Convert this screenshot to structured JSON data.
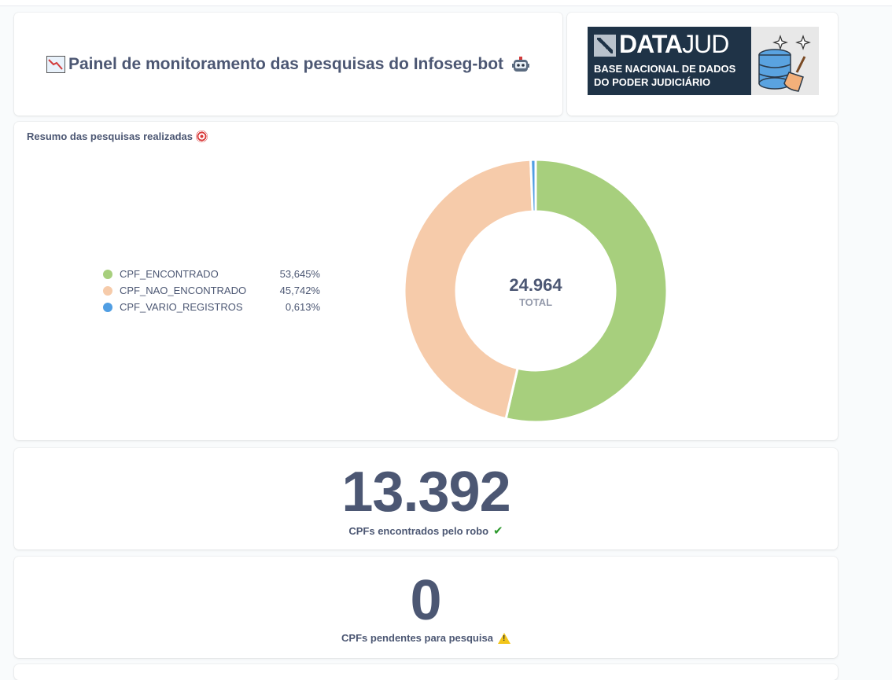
{
  "header": {
    "title": "Painel de monitoramento das pesquisas do Infoseg-bot"
  },
  "logo": {
    "brand_bold": "DATA",
    "brand_thin": "JUD",
    "subtitle_line1": "BASE NACIONAL DE DADOS",
    "subtitle_line2": "DO PODER JUDICIÁRIO"
  },
  "summary": {
    "title": "Resumo das pesquisas realizadas",
    "total_value": "24.964",
    "total_label": "TOTAL"
  },
  "chart_data": {
    "type": "pie",
    "categories": [
      "CPF_ENCONTRADO",
      "CPF_NAO_ENCONTRADO",
      "CPF_VARIO_REGISTROS"
    ],
    "values": [
      53.645,
      45.742,
      0.613
    ],
    "labels": [
      "53,645%",
      "45,742%",
      "0,613%"
    ],
    "colors": [
      "#a7cf7d",
      "#f6cbaa",
      "#509ee3"
    ],
    "legend_position": "left",
    "total": 24964
  },
  "kpis": {
    "found": {
      "value": "13.392",
      "label": "CPFs encontrados pelo robo"
    },
    "pending": {
      "value": "0",
      "label": "CPFs pendentes para pesquisa"
    }
  },
  "icons": {
    "title_left": "chart-decreasing-icon",
    "title_right": "robot-icon",
    "summary": "target-icon",
    "found": "check-mark-icon",
    "pending": "warning-icon"
  }
}
